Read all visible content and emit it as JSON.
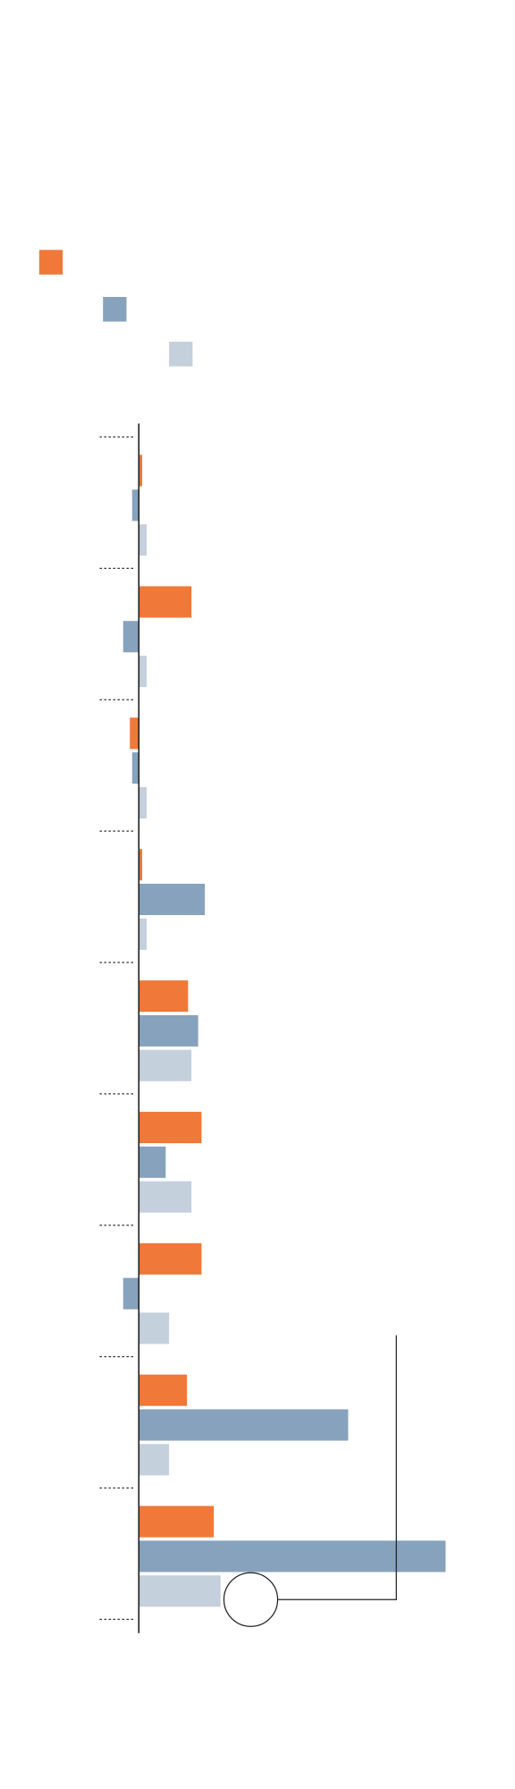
{
  "chart_data": {
    "type": "bar",
    "orientation": "horizontal",
    "categories": [
      null,
      null,
      null,
      null,
      null,
      null,
      null,
      null,
      null
    ],
    "series": [
      {
        "color": "#f07838",
        "values": [
          3,
          47,
          -8,
          3,
          44,
          56,
          56,
          43,
          67
        ]
      },
      {
        "color": "#87a2bd",
        "values": [
          -6,
          -14,
          -6,
          59,
          53,
          24,
          -14,
          187,
          274
        ]
      },
      {
        "color": "#c5d0dd",
        "values": [
          7,
          7,
          7,
          7,
          47,
          47,
          27,
          27,
          73
        ]
      }
    ],
    "xlim": [
      -35,
      336
    ]
  }
}
